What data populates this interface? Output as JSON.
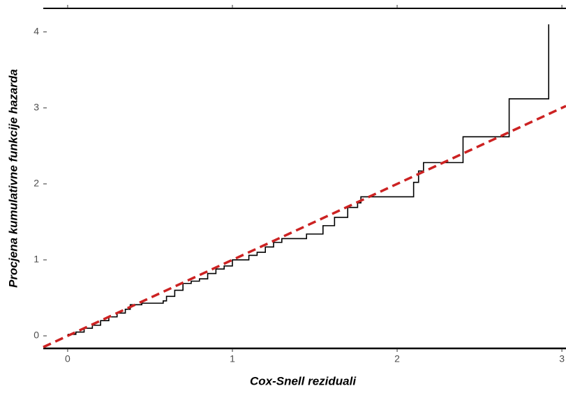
{
  "chart_data": {
    "type": "step",
    "x_label": "Cox-Snell reziduali",
    "y_label": "Procjena kumulativne funkcije hazarda",
    "x": [
      0,
      0.05,
      0.1,
      0.15,
      0.2,
      0.25,
      0.3,
      0.35,
      0.38,
      0.45,
      0.58,
      0.6,
      0.65,
      0.7,
      0.75,
      0.8,
      0.85,
      0.9,
      0.95,
      1.0,
      1.1,
      1.15,
      1.2,
      1.25,
      1.3,
      1.45,
      1.55,
      1.62,
      1.7,
      1.76,
      1.78,
      2.1,
      2.13,
      2.16,
      2.4,
      2.68,
      2.92
    ],
    "series": [
      {
        "color": "#000000",
        "values": [
          0.02,
          0.05,
          0.1,
          0.14,
          0.2,
          0.25,
          0.3,
          0.35,
          0.41,
          0.43,
          0.46,
          0.52,
          0.6,
          0.69,
          0.72,
          0.75,
          0.82,
          0.88,
          0.92,
          1.0,
          1.06,
          1.1,
          1.17,
          1.23,
          1.28,
          1.34,
          1.45,
          1.56,
          1.69,
          1.75,
          1.83,
          2.02,
          2.17,
          2.28,
          2.62,
          3.12,
          4.1
        ]
      }
    ],
    "reference_line": {
      "intercept": 0,
      "slope": 1,
      "color": "#cc2222",
      "dashed": true
    },
    "xlim": [
      -0.148,
      3.025
    ],
    "ylim": [
      -0.165,
      4.31
    ],
    "xticks": [
      0,
      1,
      2,
      3
    ],
    "yticks": [
      0,
      1,
      2,
      3,
      4
    ]
  }
}
